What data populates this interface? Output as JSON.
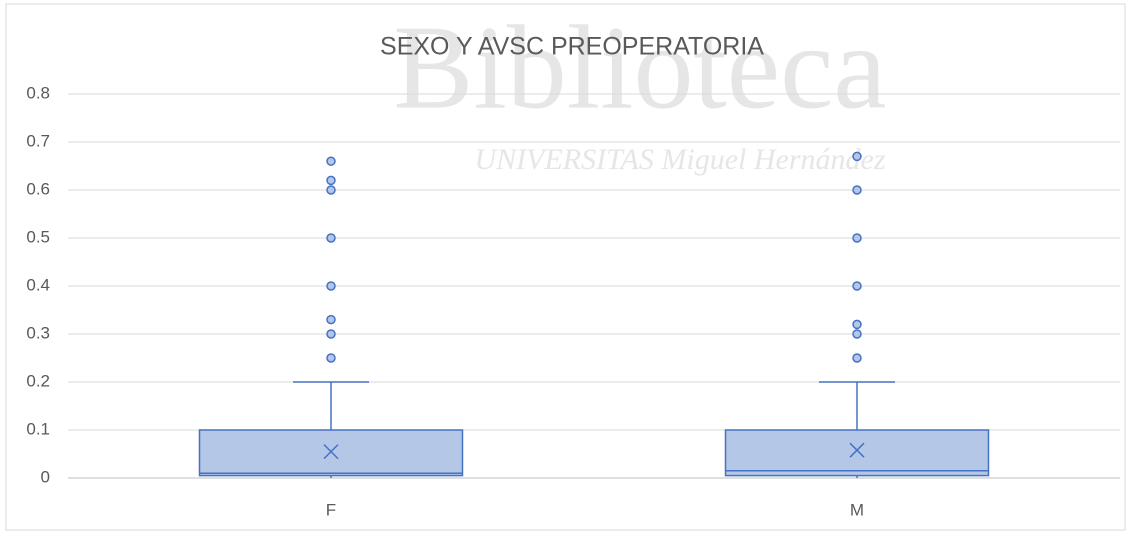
{
  "chart_data": {
    "type": "box",
    "title": "SEXO Y AVSC PREOPERATORIA",
    "watermark": [
      "Biblioteca",
      "UNIVERSITAS Miguel Hernández"
    ],
    "categories": [
      "F",
      "M"
    ],
    "color": "#4472c4",
    "fill": "#b4c7e7",
    "boxes": [
      {
        "min": 0,
        "q1": 0.005,
        "median": 0.01,
        "q3": 0.1,
        "max": 0.2,
        "mean": 0.055,
        "outliers": [
          0.66,
          0.62,
          0.6,
          0.5,
          0.4,
          0.33,
          0.3,
          0.25
        ]
      },
      {
        "min": 0,
        "q1": 0.005,
        "median": 0.015,
        "q3": 0.1,
        "max": 0.2,
        "mean": 0.058,
        "outliers": [
          0.67,
          0.6,
          0.5,
          0.4,
          0.32,
          0.3,
          0.25
        ]
      }
    ],
    "ylim": [
      0,
      0.8
    ],
    "yticks": [
      0,
      0.1,
      0.2,
      0.3,
      0.4,
      0.5,
      0.6,
      0.7,
      0.8
    ],
    "grid": true
  }
}
